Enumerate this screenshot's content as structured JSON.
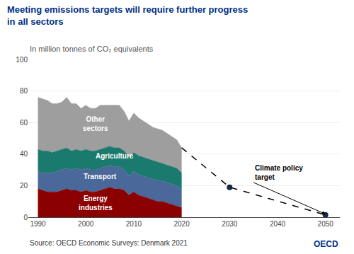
{
  "chart_data": {
    "type": "area",
    "title": "Meeting emissions targets will require further progress\nin all sectors",
    "subtitle": "In million tonnes of CO₂ equivalents",
    "source": "Source: OECD Economic Surveys: Denmark 2021",
    "logo_text": "OECD",
    "stacked": true,
    "grid": true,
    "x": [
      1990,
      1991,
      1992,
      1993,
      1994,
      1995,
      1996,
      1997,
      1998,
      1999,
      2000,
      2001,
      2002,
      2003,
      2004,
      2005,
      2006,
      2007,
      2008,
      2009,
      2010,
      2011,
      2012,
      2013,
      2014,
      2015,
      2016,
      2017,
      2018,
      2019,
      2020
    ],
    "series": [
      {
        "type": "area",
        "color": "#8b0000",
        "values": [
          18,
          17,
          16,
          16,
          16,
          17,
          18,
          17,
          17,
          16,
          17,
          16,
          16,
          17,
          18,
          19,
          18,
          18,
          17,
          14,
          16,
          14,
          13,
          12,
          11,
          10,
          10,
          9,
          8,
          7,
          6
        ]
      },
      {
        "type": "area",
        "color": "#4a6899",
        "values": [
          11,
          11,
          12,
          12,
          13,
          13,
          13,
          13,
          14,
          14,
          14,
          14,
          14,
          14,
          14,
          14,
          14,
          14,
          13,
          12,
          13,
          13,
          13,
          13,
          13,
          13,
          13,
          13,
          13,
          13,
          11
        ]
      },
      {
        "type": "area",
        "color": "#1b7a6e",
        "values": [
          14,
          14,
          14,
          13,
          13,
          13,
          13,
          12,
          12,
          12,
          12,
          12,
          12,
          12,
          12,
          12,
          12,
          12,
          12,
          12,
          12,
          12,
          12,
          12,
          12,
          12,
          11,
          11,
          11,
          11,
          11
        ]
      },
      {
        "type": "area",
        "color": "#9e9e9e",
        "values": [
          33,
          33,
          32,
          31,
          30,
          30,
          32,
          30,
          29,
          27,
          28,
          27,
          27,
          28,
          27,
          26,
          27,
          27,
          25,
          23,
          25,
          24,
          23,
          22,
          21,
          21,
          21,
          20,
          19,
          18,
          16
        ]
      },
      {
        "type": "line",
        "color": "black",
        "line_style": "dash",
        "x": [
          2020,
          2030,
          2050
        ],
        "values": [
          44,
          19.0,
          1.5
        ]
      },
      {
        "type": "scatter",
        "color": "#1a2744",
        "marker": "circle",
        "x": [
          2030,
          2050
        ],
        "values": [
          19.0,
          1.5
        ]
      }
    ],
    "annotations": [
      {
        "text": "Climate policy\ntarget",
        "x": 2050,
        "y": 2,
        "text_x": 2035,
        "text_y": 22,
        "color": "black"
      },
      {
        "text": "Energy\nindustries",
        "x": 2002,
        "y": 9,
        "color": "white"
      },
      {
        "text": "Transport",
        "x": 2003,
        "y": 26,
        "color": "white"
      },
      {
        "text": "Agriculture",
        "x": 2006,
        "y": 39,
        "color": "white"
      },
      {
        "text": "Other\nsectors",
        "x": 2002,
        "y": 59,
        "color": "white"
      }
    ],
    "xlim": [
      1988,
      2053
    ],
    "xticks": [
      1990,
      2000,
      2010,
      2020,
      2030,
      2040,
      2050
    ],
    "ylim": [
      0,
      100
    ],
    "yticks": [
      0,
      20,
      40,
      60,
      80,
      100
    ]
  }
}
